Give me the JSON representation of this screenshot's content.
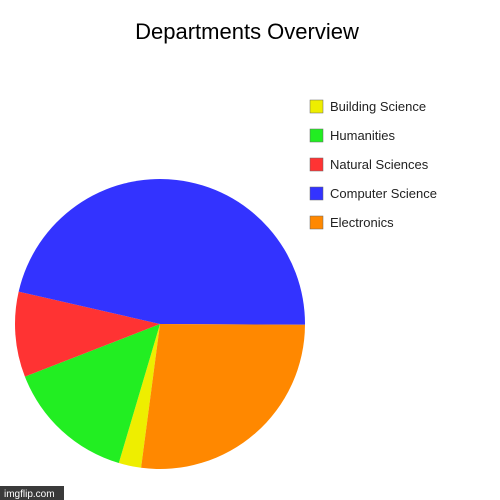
{
  "chart_data": {
    "type": "pie",
    "title": "Departments Overview",
    "categories": [
      "Building Science",
      "Humanities",
      "Natural Sciences",
      "Computer Science",
      "Electronics"
    ],
    "values": [
      2.5,
      14.5,
      9.5,
      46.5,
      27.0
    ],
    "colors": [
      "#eeee00",
      "#22ee22",
      "#ff3333",
      "#3333ff",
      "#ff8800"
    ],
    "legend": {
      "position": "right",
      "items": [
        {
          "label": "Building Science",
          "color": "#eeee00"
        },
        {
          "label": "Humanities",
          "color": "#22ee22"
        },
        {
          "label": "Natural Sciences",
          "color": "#ff3333"
        },
        {
          "label": "Computer Science",
          "color": "#3333ff"
        },
        {
          "label": "Electronics",
          "color": "#ff8800"
        }
      ]
    }
  },
  "watermark": "imgflip.com"
}
